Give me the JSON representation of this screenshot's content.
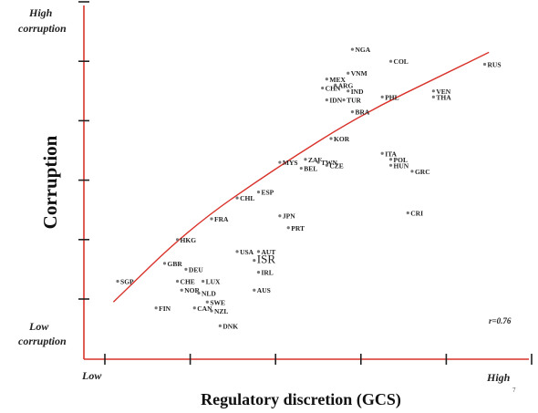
{
  "chart_data": {
    "type": "scatter",
    "title": "",
    "xlabel": "Regulatory discretion (GCS)",
    "ylabel": "Corruption",
    "x_axis_ends": {
      "low": "Low",
      "high": "High"
    },
    "y_axis_ends": {
      "high": [
        "High",
        "corruption"
      ],
      "low": [
        "Low",
        "corruption"
      ]
    },
    "correlation": "r=0.76",
    "page_number": "7",
    "xlim": [
      0.3,
      5.5
    ],
    "ylim": [
      0,
      5.5
    ],
    "x_ticks": [
      0.5,
      1.5,
      2.5,
      3.5,
      4.5,
      5.5
    ],
    "y_ticks": [
      0.5,
      1.5,
      2.5,
      3.5,
      4.5,
      5.5
    ],
    "fit_line": [
      [
        0.6,
        0.45
      ],
      [
        1.5,
        1.7
      ],
      [
        2.5,
        2.7
      ],
      [
        3.5,
        3.6
      ],
      [
        4.5,
        4.3
      ],
      [
        5.0,
        4.65
      ]
    ],
    "points": [
      {
        "label": "NGA",
        "x": 3.4,
        "y": 4.7
      },
      {
        "label": "COL",
        "x": 3.85,
        "y": 4.5
      },
      {
        "label": "RUS",
        "x": 4.95,
        "y": 4.45
      },
      {
        "label": "VNM",
        "x": 3.35,
        "y": 4.3
      },
      {
        "label": "MEX",
        "x": 3.1,
        "y": 4.2
      },
      {
        "label": "ARG",
        "x": 3.2,
        "y": 4.1
      },
      {
        "label": "VEN",
        "x": 4.35,
        "y": 4.0
      },
      {
        "label": "CHN",
        "x": 3.05,
        "y": 4.05
      },
      {
        "label": "IND",
        "x": 3.35,
        "y": 4.0
      },
      {
        "label": "PHL",
        "x": 3.75,
        "y": 3.9
      },
      {
        "label": "THA",
        "x": 4.35,
        "y": 3.9
      },
      {
        "label": "IDN",
        "x": 3.1,
        "y": 3.85
      },
      {
        "label": "TUR",
        "x": 3.3,
        "y": 3.85
      },
      {
        "label": "BRA",
        "x": 3.4,
        "y": 3.65
      },
      {
        "label": "KOR",
        "x": 3.15,
        "y": 3.2
      },
      {
        "label": "ITA",
        "x": 3.75,
        "y": 2.95
      },
      {
        "label": "POL",
        "x": 3.85,
        "y": 2.85
      },
      {
        "label": "MYS",
        "x": 2.55,
        "y": 2.8
      },
      {
        "label": "ZAF",
        "x": 2.85,
        "y": 2.85
      },
      {
        "label": "TWN",
        "x": 3.0,
        "y": 2.8
      },
      {
        "label": "BEL",
        "x": 2.8,
        "y": 2.7
      },
      {
        "label": "CZE",
        "x": 3.1,
        "y": 2.75
      },
      {
        "label": "HUN",
        "x": 3.85,
        "y": 2.75
      },
      {
        "label": "GRC",
        "x": 4.1,
        "y": 2.65
      },
      {
        "label": "ESP",
        "x": 2.3,
        "y": 2.3
      },
      {
        "label": "CHL",
        "x": 2.05,
        "y": 2.2
      },
      {
        "label": "CRI",
        "x": 4.05,
        "y": 1.95
      },
      {
        "label": "JPN",
        "x": 2.55,
        "y": 1.9
      },
      {
        "label": "FRA",
        "x": 1.75,
        "y": 1.85
      },
      {
        "label": "PRT",
        "x": 2.65,
        "y": 1.7
      },
      {
        "label": "HKG",
        "x": 1.35,
        "y": 1.5
      },
      {
        "label": "USA",
        "x": 2.05,
        "y": 1.3
      },
      {
        "label": "AUT",
        "x": 2.3,
        "y": 1.3
      },
      {
        "label": "ISR",
        "x": 2.25,
        "y": 1.15
      },
      {
        "label": "IRL",
        "x": 2.3,
        "y": 0.95
      },
      {
        "label": "GBR",
        "x": 1.2,
        "y": 1.1
      },
      {
        "label": "DEU",
        "x": 1.45,
        "y": 1.0
      },
      {
        "label": "SGP",
        "x": 0.65,
        "y": 0.8
      },
      {
        "label": "CHE",
        "x": 1.35,
        "y": 0.8
      },
      {
        "label": "LUX",
        "x": 1.65,
        "y": 0.8
      },
      {
        "label": "AUS",
        "x": 2.25,
        "y": 0.65
      },
      {
        "label": "NOR",
        "x": 1.4,
        "y": 0.65
      },
      {
        "label": "NLD",
        "x": 1.6,
        "y": 0.6
      },
      {
        "label": "SWE",
        "x": 1.7,
        "y": 0.45
      },
      {
        "label": "FIN",
        "x": 1.1,
        "y": 0.35
      },
      {
        "label": "CAN",
        "x": 1.55,
        "y": 0.35
      },
      {
        "label": "NZL",
        "x": 1.75,
        "y": 0.3
      },
      {
        "label": "DNK",
        "x": 1.85,
        "y": 0.05
      }
    ],
    "grid": false,
    "legend": "none"
  }
}
